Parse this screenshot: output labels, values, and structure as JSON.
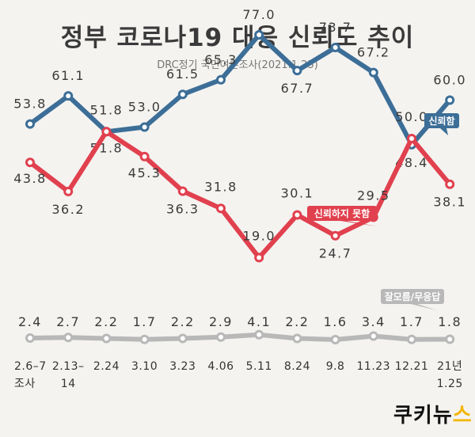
{
  "header": {
    "title": "정부 코로나19 대응 신뢰도 추이",
    "subtitle": "DRC정기 국민여론조사(2021.1.25)"
  },
  "logo": {
    "main": "쿠키뉴",
    "accent": "스"
  },
  "chart_data": {
    "type": "line",
    "title": "정부 코로나19 대응 신뢰도 추이",
    "subtitle": "DRC정기 국민여론조사(2021.1.25)",
    "categories": [
      [
        "2.6–7",
        "조사"
      ],
      [
        "2.13–",
        "14"
      ],
      [
        "2.24"
      ],
      [
        "3.10"
      ],
      [
        "3.23"
      ],
      [
        "4.06"
      ],
      [
        "5.11"
      ],
      [
        "8.24"
      ],
      [
        "9.8"
      ],
      [
        "11.23"
      ],
      [
        "12.21"
      ],
      [
        "21년",
        "1.25"
      ]
    ],
    "series": [
      {
        "name": "신뢰함",
        "color": "#3c6e97",
        "values": [
          53.8,
          61.1,
          51.8,
          53.0,
          61.5,
          65.3,
          77.0,
          67.7,
          73.7,
          67.2,
          48.4,
          60.0
        ],
        "labels": [
          "53.8",
          "61.1",
          "51.8",
          "53.0",
          "61.5",
          "65.3",
          "77.0",
          "67.7",
          "73.7",
          "67.2",
          "48.4",
          "60.0"
        ]
      },
      {
        "name": "신뢰하지 못함",
        "color": "#e1404e",
        "values": [
          43.8,
          36.2,
          51.8,
          45.3,
          36.3,
          31.8,
          19.0,
          30.1,
          24.7,
          29.5,
          50.0,
          38.1
        ],
        "labels": [
          "43.8",
          "36.2",
          "51.8",
          "45.3",
          "36.3",
          "31.8",
          "19.0",
          "30.1",
          "24.7",
          "29.5",
          "50.0",
          "38.1"
        ]
      },
      {
        "name": "잘모름/무응답",
        "color": "#b8b8b8",
        "values": [
          2.4,
          2.7,
          2.2,
          1.7,
          2.2,
          2.9,
          4.1,
          2.2,
          1.6,
          3.4,
          1.7,
          1.8
        ],
        "labels": [
          "2.4",
          "2.7",
          "2.2",
          "1.7",
          "2.2",
          "2.9",
          "4.1",
          "2.2",
          "1.6",
          "3.4",
          "1.7",
          "1.8"
        ]
      }
    ]
  }
}
